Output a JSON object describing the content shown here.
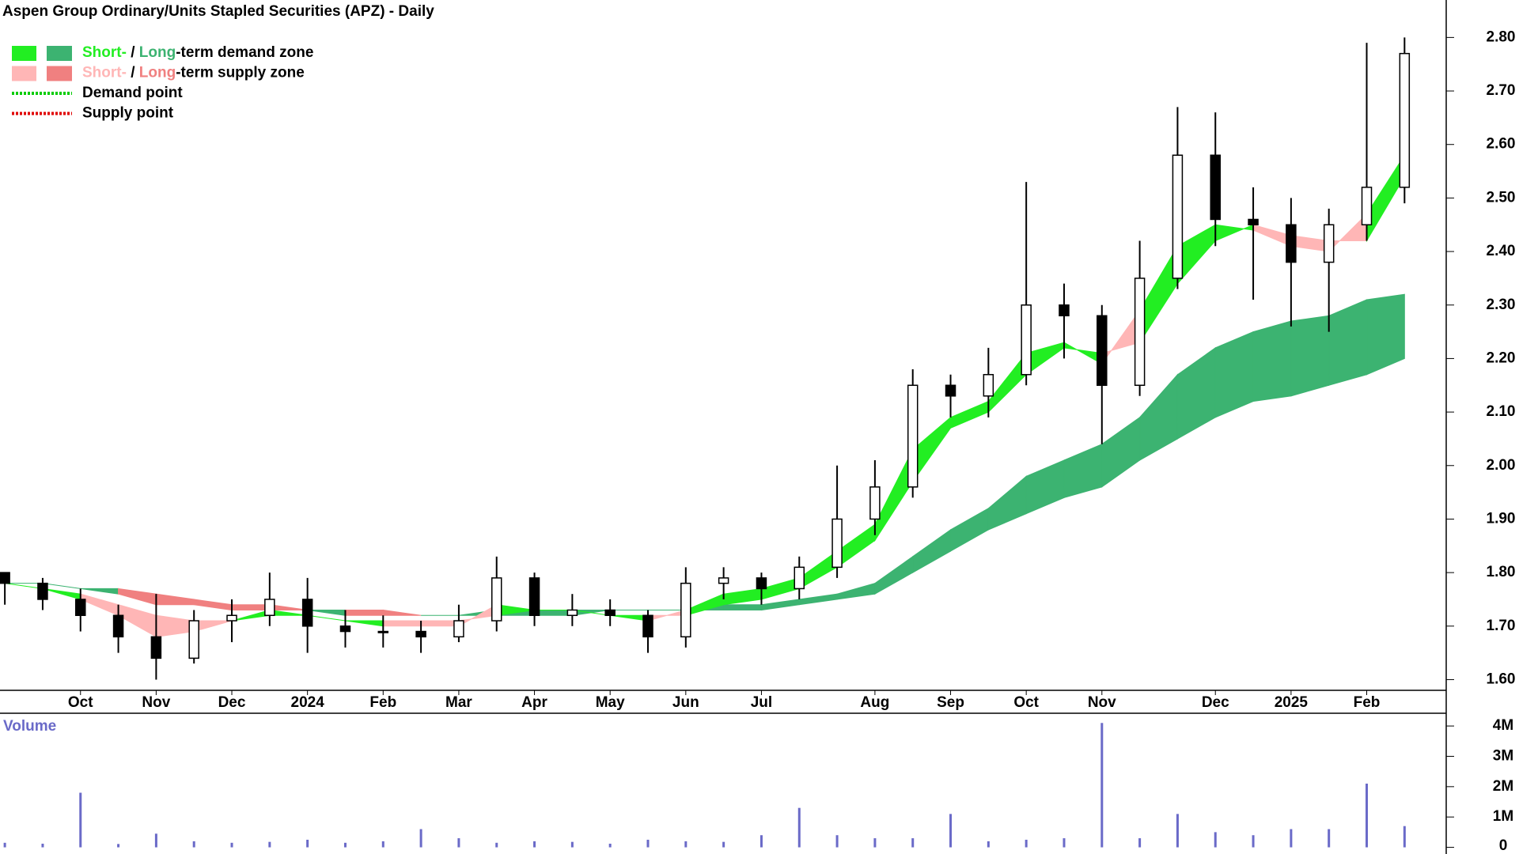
{
  "chart_data": [
    {
      "type": "candlestick",
      "title": "Aspen Group Ordinary/Units Stapled Securities (APZ) - Daily",
      "categories": [
        null,
        null,
        "Oct",
        null,
        "Nov",
        null,
        "Dec",
        null,
        "2024",
        null,
        "Feb",
        null,
        "Mar",
        null,
        "Apr",
        null,
        "May",
        null,
        "Jun",
        null,
        "Jul",
        null,
        null,
        "Aug",
        null,
        "Sep",
        null,
        "Oct",
        null,
        "Nov",
        null,
        null,
        "Dec",
        null,
        "2025",
        null,
        "Feb",
        null
      ],
      "open": [
        1.8,
        1.78,
        1.75,
        1.72,
        1.68,
        1.64,
        1.71,
        1.72,
        1.75,
        1.7,
        1.69,
        1.69,
        1.68,
        1.71,
        1.79,
        1.72,
        1.73,
        1.72,
        1.68,
        1.78,
        1.79,
        1.77,
        1.81,
        1.9,
        1.96,
        2.15,
        2.13,
        2.17,
        2.3,
        2.28,
        2.15,
        2.35,
        2.58,
        2.46,
        2.45,
        2.38,
        2.45,
        2.52
      ],
      "high": [
        1.8,
        1.79,
        1.77,
        1.74,
        1.76,
        1.73,
        1.75,
        1.8,
        1.79,
        1.73,
        1.72,
        1.71,
        1.74,
        1.83,
        1.8,
        1.76,
        1.75,
        1.73,
        1.81,
        1.81,
        1.8,
        1.83,
        2.0,
        2.01,
        2.18,
        2.17,
        2.22,
        2.53,
        2.34,
        2.3,
        2.42,
        2.67,
        2.66,
        2.52,
        2.5,
        2.48,
        2.79,
        2.8
      ],
      "low": [
        1.74,
        1.73,
        1.69,
        1.65,
        1.6,
        1.63,
        1.67,
        1.7,
        1.65,
        1.66,
        1.66,
        1.65,
        1.67,
        1.69,
        1.7,
        1.7,
        1.7,
        1.65,
        1.66,
        1.75,
        1.74,
        1.75,
        1.79,
        1.87,
        1.94,
        2.09,
        2.09,
        2.15,
        2.2,
        2.04,
        2.13,
        2.33,
        2.41,
        2.31,
        2.26,
        2.25,
        2.42,
        2.49
      ],
      "close": [
        1.78,
        1.75,
        1.72,
        1.68,
        1.64,
        1.71,
        1.72,
        1.75,
        1.7,
        1.69,
        1.69,
        1.68,
        1.71,
        1.79,
        1.72,
        1.73,
        1.72,
        1.68,
        1.78,
        1.79,
        1.77,
        1.81,
        1.9,
        1.96,
        2.15,
        2.13,
        2.17,
        2.3,
        2.28,
        2.15,
        2.35,
        2.58,
        2.46,
        2.45,
        2.38,
        2.45,
        2.52,
        2.77
      ],
      "short_fast": [
        1.78,
        1.77,
        1.75,
        1.72,
        1.68,
        1.69,
        1.71,
        1.73,
        1.72,
        1.71,
        1.7,
        1.7,
        1.7,
        1.74,
        1.73,
        1.73,
        1.72,
        1.71,
        1.73,
        1.76,
        1.77,
        1.79,
        1.84,
        1.89,
        2.03,
        2.09,
        2.12,
        2.21,
        2.23,
        2.19,
        2.29,
        2.41,
        2.45,
        2.44,
        2.41,
        2.4,
        2.47,
        2.58
      ],
      "short_slow": [
        1.78,
        1.77,
        1.76,
        1.74,
        1.72,
        1.71,
        1.71,
        1.72,
        1.72,
        1.71,
        1.71,
        1.71,
        1.71,
        1.72,
        1.73,
        1.73,
        1.72,
        1.72,
        1.72,
        1.74,
        1.75,
        1.77,
        1.81,
        1.86,
        1.97,
        2.07,
        2.1,
        2.17,
        2.22,
        2.21,
        2.23,
        2.34,
        2.42,
        2.45,
        2.43,
        2.42,
        2.42,
        2.54
      ],
      "long_fast": [
        1.78,
        1.78,
        1.77,
        1.76,
        1.74,
        1.74,
        1.73,
        1.73,
        1.73,
        1.72,
        1.72,
        1.72,
        1.72,
        1.73,
        1.73,
        1.73,
        1.73,
        1.73,
        1.73,
        1.74,
        1.74,
        1.75,
        1.76,
        1.78,
        1.83,
        1.88,
        1.92,
        1.98,
        2.01,
        2.04,
        2.09,
        2.17,
        2.22,
        2.25,
        2.27,
        2.28,
        2.31,
        2.32
      ],
      "long_slow": [
        1.78,
        1.78,
        1.77,
        1.77,
        1.76,
        1.75,
        1.74,
        1.74,
        1.73,
        1.73,
        1.73,
        1.72,
        1.72,
        1.72,
        1.72,
        1.72,
        1.73,
        1.73,
        1.73,
        1.73,
        1.73,
        1.74,
        1.75,
        1.76,
        1.8,
        1.84,
        1.88,
        1.91,
        1.94,
        1.96,
        2.01,
        2.05,
        2.09,
        2.12,
        2.13,
        2.15,
        2.17,
        2.2
      ],
      "colors": {
        "short_demand": "#22ee22",
        "long_demand": "#3cb371",
        "short_supply": "#ffb6b6",
        "long_supply": "#f08080",
        "demand_point": "#00cc00",
        "supply_point": "#e00000",
        "candle": "#000000"
      },
      "legend": [
        {
          "parts": [
            "Short-",
            " / ",
            "Long",
            "-term demand zone"
          ]
        },
        {
          "parts": [
            "Short-",
            " / ",
            "Long",
            "-term supply zone"
          ]
        },
        {
          "parts": [
            "Demand point"
          ]
        },
        {
          "parts": [
            "Supply point"
          ]
        }
      ],
      "ylim": [
        1.58,
        2.87
      ],
      "yticks": [
        {
          "value": 1.6,
          "label": "1.60"
        },
        {
          "value": 1.7,
          "label": "1.70"
        },
        {
          "value": 1.8,
          "label": "1.80"
        },
        {
          "value": 1.9,
          "label": "1.90"
        },
        {
          "value": 2.0,
          "label": "2.00"
        },
        {
          "value": 2.1,
          "label": "2.10"
        },
        {
          "value": 2.2,
          "label": "2.20"
        },
        {
          "value": 2.3,
          "label": "2.30"
        },
        {
          "value": 2.4,
          "label": "2.40"
        },
        {
          "value": 2.5,
          "label": "2.50"
        },
        {
          "value": 2.6,
          "label": "2.60"
        },
        {
          "value": 2.7,
          "label": "2.70"
        },
        {
          "value": 2.8,
          "label": "2.80"
        }
      ]
    },
    {
      "type": "bar",
      "title": "Volume",
      "color": "#6a6ac8",
      "values": [
        150000,
        120000,
        1800000,
        110000,
        450000,
        200000,
        150000,
        180000,
        250000,
        150000,
        200000,
        600000,
        300000,
        150000,
        200000,
        180000,
        120000,
        250000,
        200000,
        180000,
        400000,
        1300000,
        400000,
        300000,
        300000,
        1100000,
        200000,
        250000,
        300000,
        4100000,
        300000,
        1100000,
        500000,
        400000,
        600000,
        600000,
        2100000,
        700000
      ],
      "ylim": [
        -220000,
        4420000
      ],
      "yticks": [
        0,
        {
          "value": 1000000,
          "label": "1M"
        },
        {
          "value": 2000000,
          "label": "2M"
        },
        {
          "value": 3000000,
          "label": "3M"
        },
        {
          "value": 4000000,
          "label": "4M"
        }
      ]
    }
  ]
}
